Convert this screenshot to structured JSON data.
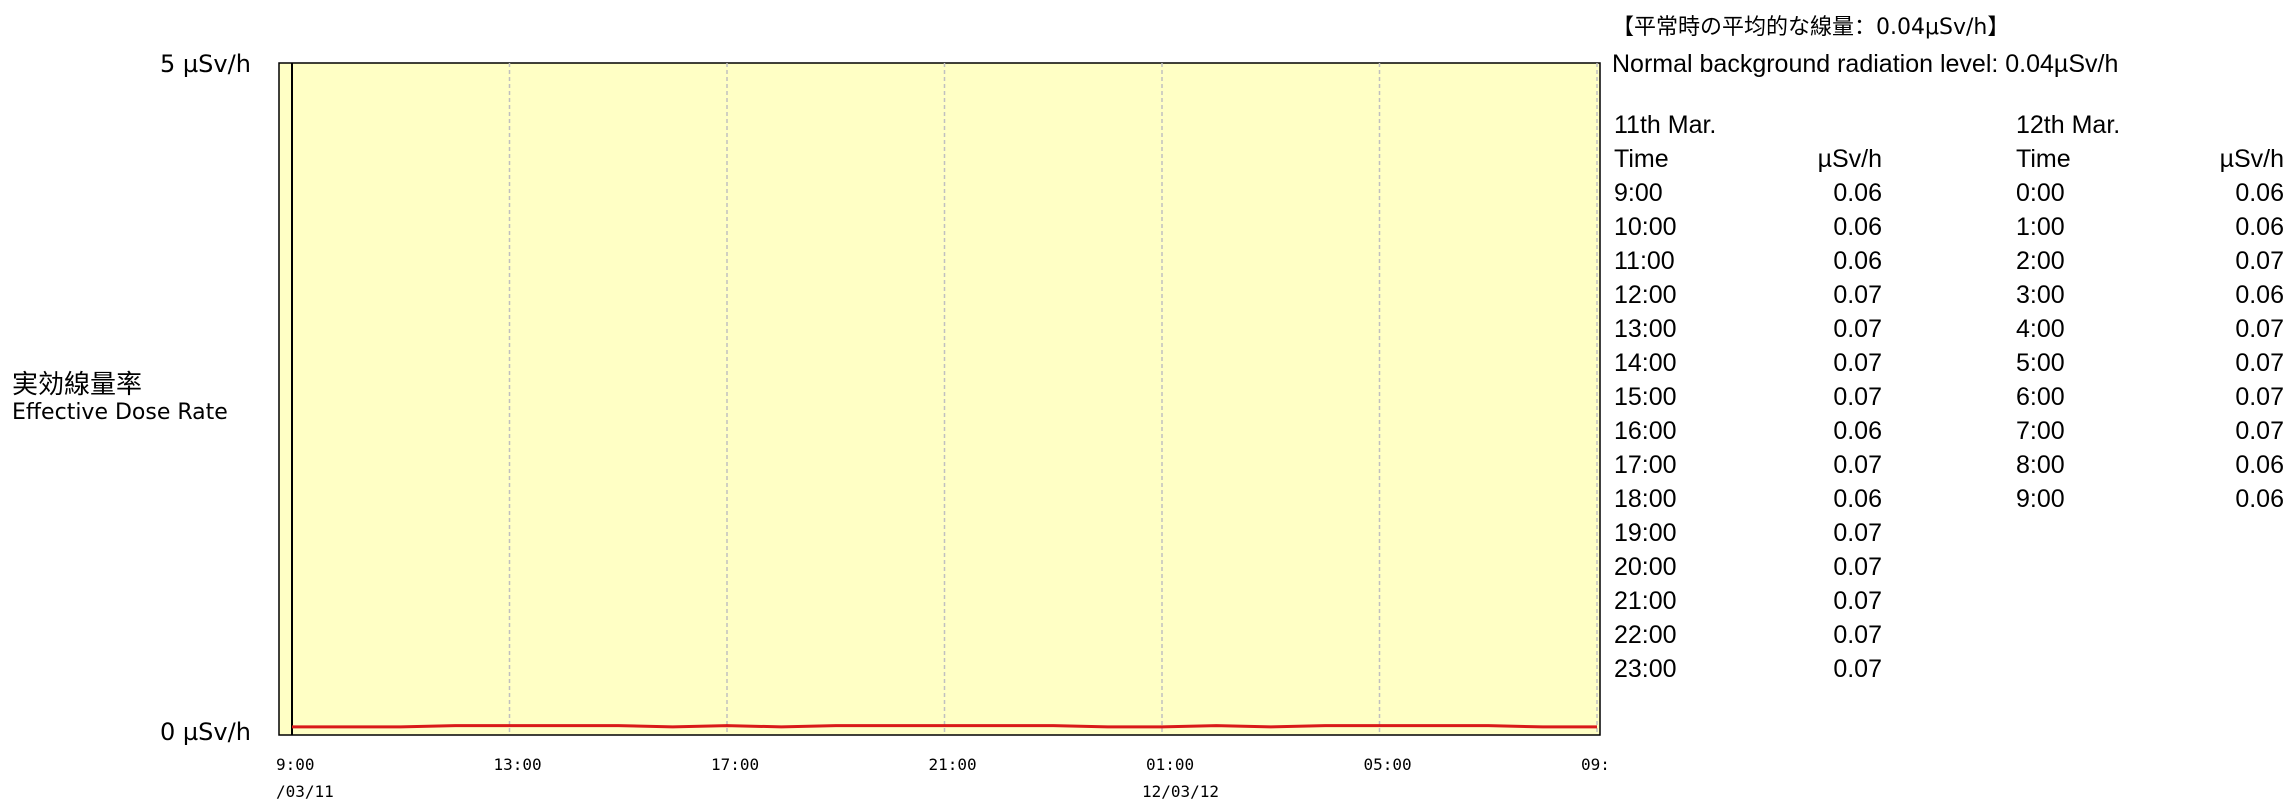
{
  "chart_data": {
    "type": "line",
    "y_axis": {
      "title_jp": "実効線量率",
      "title_en": "Effective Dose Rate",
      "tick_labels": [
        "5 µSv/h",
        "0 µSv/h"
      ],
      "ylim": [
        0,
        5
      ],
      "unit": "µSv/h"
    },
    "x_axis": {
      "tick_labels": [
        "9:00",
        "13:00",
        "17:00",
        "21:00",
        "01:00",
        "05:00",
        "09:"
      ],
      "date_labels": [
        "/03/11",
        "12/03/12"
      ],
      "range": [
        "2011-03-11 09:00",
        "2011-03-12 09:00"
      ]
    },
    "grid": "vertical dashed every 4 hours",
    "colors": {
      "plot_background": "#ffffc5",
      "series_line": "#d91a1a",
      "grid": "#c0c0c0"
    },
    "series": [
      {
        "x": [
          "09:00",
          "10:00",
          "11:00",
          "12:00",
          "13:00",
          "14:00",
          "15:00",
          "16:00",
          "17:00",
          "18:00",
          "19:00",
          "20:00",
          "21:00",
          "22:00",
          "23:00",
          "00:00",
          "01:00",
          "02:00",
          "03:00",
          "04:00",
          "05:00",
          "06:00",
          "07:00",
          "08:00",
          "09:00"
        ],
        "values": [
          0.06,
          0.06,
          0.06,
          0.07,
          0.07,
          0.07,
          0.07,
          0.06,
          0.07,
          0.06,
          0.07,
          0.07,
          0.07,
          0.07,
          0.07,
          0.06,
          0.06,
          0.07,
          0.06,
          0.07,
          0.07,
          0.07,
          0.07,
          0.06,
          0.06
        ]
      }
    ]
  },
  "note": {
    "jp_title": "【平常時の平均的な線量：0.04μSv/h】",
    "en_title": "Normal background radiation level: 0.04µSv/h"
  },
  "tables": [
    {
      "date": "11th Mar.",
      "col_time": "Time",
      "col_value": "µSv/h",
      "rows": [
        {
          "time": "9:00",
          "value": "0.06"
        },
        {
          "time": "10:00",
          "value": "0.06"
        },
        {
          "time": "11:00",
          "value": "0.06"
        },
        {
          "time": "12:00",
          "value": "0.07"
        },
        {
          "time": "13:00",
          "value": "0.07"
        },
        {
          "time": "14:00",
          "value": "0.07"
        },
        {
          "time": "15:00",
          "value": "0.07"
        },
        {
          "time": "16:00",
          "value": "0.06"
        },
        {
          "time": "17:00",
          "value": "0.07"
        },
        {
          "time": "18:00",
          "value": "0.06"
        },
        {
          "time": "19:00",
          "value": "0.07"
        },
        {
          "time": "20:00",
          "value": "0.07"
        },
        {
          "time": "21:00",
          "value": "0.07"
        },
        {
          "time": "22:00",
          "value": "0.07"
        },
        {
          "time": "23:00",
          "value": "0.07"
        }
      ]
    },
    {
      "date": "12th Mar.",
      "col_time": "Time",
      "col_value": "µSv/h",
      "rows": [
        {
          "time": "0:00",
          "value": "0.06"
        },
        {
          "time": "1:00",
          "value": "0.06"
        },
        {
          "time": "2:00",
          "value": "0.07"
        },
        {
          "time": "3:00",
          "value": "0.06"
        },
        {
          "time": "4:00",
          "value": "0.07"
        },
        {
          "time": "5:00",
          "value": "0.07"
        },
        {
          "time": "6:00",
          "value": "0.07"
        },
        {
          "time": "7:00",
          "value": "0.07"
        },
        {
          "time": "8:00",
          "value": "0.06"
        },
        {
          "time": "9:00",
          "value": "0.06"
        }
      ]
    }
  ]
}
